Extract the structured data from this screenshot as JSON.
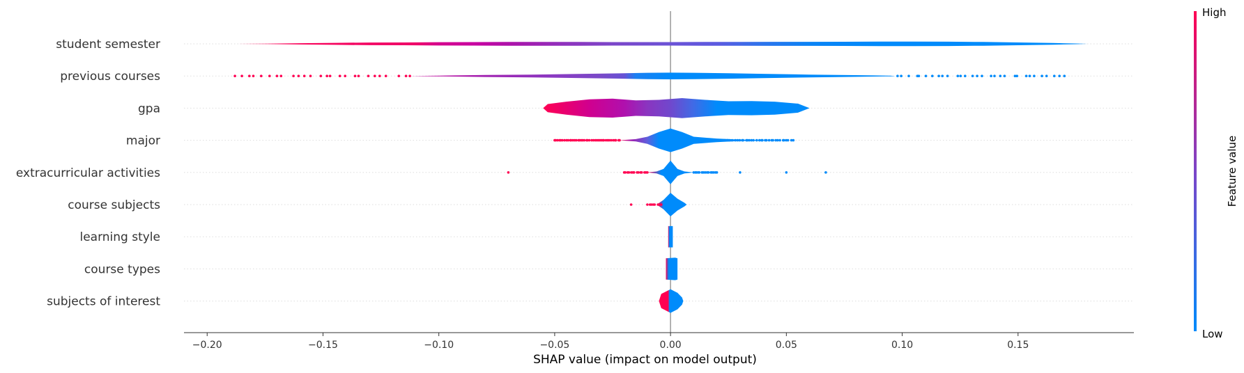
{
  "chart_data": {
    "type": "violin",
    "xlabel": "SHAP value (impact on model output)",
    "xlim": [
      -0.21,
      0.2
    ],
    "xticks": [
      -0.2,
      -0.15,
      -0.1,
      -0.05,
      0.0,
      0.05,
      0.1,
      0.15
    ],
    "xtick_labels": [
      "−0.20",
      "−0.15",
      "−0.10",
      "−0.05",
      "0.00",
      "0.05",
      "0.10",
      "0.15"
    ],
    "colorbar": {
      "label": "Feature value",
      "high_label": "High",
      "low_label": "Low",
      "high_color": "#ff0052",
      "low_color": "#008bfb"
    },
    "features": [
      {
        "name": "student semester",
        "violin": [
          [
            -0.187,
            0.0
          ],
          [
            -0.175,
            0.02
          ],
          [
            -0.16,
            0.05
          ],
          [
            -0.145,
            0.08
          ],
          [
            -0.13,
            0.11
          ],
          [
            -0.115,
            0.12
          ],
          [
            -0.1,
            0.14
          ],
          [
            -0.085,
            0.15
          ],
          [
            -0.07,
            0.16
          ],
          [
            -0.055,
            0.16
          ],
          [
            -0.04,
            0.16
          ],
          [
            -0.025,
            0.15
          ],
          [
            -0.01,
            0.15
          ],
          [
            0.0,
            0.15
          ],
          [
            0.015,
            0.16
          ],
          [
            0.03,
            0.165
          ],
          [
            0.045,
            0.17
          ],
          [
            0.06,
            0.17
          ],
          [
            0.075,
            0.175
          ],
          [
            0.09,
            0.19
          ],
          [
            0.105,
            0.19
          ],
          [
            0.12,
            0.18
          ],
          [
            0.135,
            0.16
          ],
          [
            0.15,
            0.12
          ],
          [
            0.165,
            0.07
          ],
          [
            0.175,
            0.03
          ],
          [
            0.18,
            0.0
          ]
        ],
        "colors": [
          [
            -0.187,
            "#ff0052"
          ],
          [
            -0.11,
            "#ef0869"
          ],
          [
            -0.1,
            "#d4008d"
          ],
          [
            -0.085,
            "#c800a0"
          ],
          [
            -0.065,
            "#a618ad"
          ],
          [
            -0.045,
            "#8e33be"
          ],
          [
            -0.025,
            "#7b46c9"
          ],
          [
            0.0,
            "#6b52d6"
          ],
          [
            0.02,
            "#5c5ae0"
          ],
          [
            0.04,
            "#2c74ec"
          ],
          [
            0.06,
            "#0a83f5"
          ],
          [
            0.09,
            "#008bfb"
          ],
          [
            0.18,
            "#008bfb"
          ]
        ],
        "dots": []
      },
      {
        "name": "previous courses",
        "violin": [
          [
            -0.113,
            0.0
          ],
          [
            -0.1,
            0.03
          ],
          [
            -0.08,
            0.08
          ],
          [
            -0.06,
            0.12
          ],
          [
            -0.04,
            0.17
          ],
          [
            -0.02,
            0.23
          ],
          [
            -0.01,
            0.27
          ],
          [
            0.0,
            0.28
          ],
          [
            0.01,
            0.27
          ],
          [
            0.025,
            0.23
          ],
          [
            0.04,
            0.18
          ],
          [
            0.06,
            0.12
          ],
          [
            0.08,
            0.07
          ],
          [
            0.095,
            0.03
          ],
          [
            0.097,
            0.0
          ]
        ],
        "colors": [
          [
            -0.113,
            "#ff0052"
          ],
          [
            -0.112,
            "#c80098"
          ],
          [
            -0.08,
            "#a020b0"
          ],
          [
            -0.05,
            "#8a3ac2"
          ],
          [
            -0.03,
            "#7a4ac8"
          ],
          [
            -0.02,
            "#6752d5"
          ],
          [
            -0.015,
            "#1a7ff2"
          ],
          [
            0.0,
            "#008bfb"
          ],
          [
            0.097,
            "#008bfb"
          ]
        ],
        "dots": [
          [
            -0.188,
            -0.1125,
            "#ff0052",
            26
          ],
          [
            0.098,
            0.17,
            "#008bfb",
            30
          ]
        ]
      },
      {
        "name": "gpa",
        "violin": [
          [
            -0.055,
            0.0
          ],
          [
            -0.053,
            0.35
          ],
          [
            -0.045,
            0.55
          ],
          [
            -0.035,
            0.75
          ],
          [
            -0.025,
            0.8
          ],
          [
            -0.015,
            0.65
          ],
          [
            -0.005,
            0.7
          ],
          [
            0.005,
            0.85
          ],
          [
            0.015,
            0.7
          ],
          [
            0.025,
            0.58
          ],
          [
            0.035,
            0.6
          ],
          [
            0.045,
            0.55
          ],
          [
            0.055,
            0.38
          ],
          [
            0.06,
            0.0
          ]
        ],
        "colors": [
          [
            -0.055,
            "#ff0052"
          ],
          [
            -0.035,
            "#d0008f"
          ],
          [
            -0.02,
            "#b010ad"
          ],
          [
            -0.01,
            "#8a35c0"
          ],
          [
            0.0,
            "#7048cd"
          ],
          [
            0.01,
            "#3f6be6"
          ],
          [
            0.02,
            "#008bfb"
          ],
          [
            0.06,
            "#008bfb"
          ]
        ],
        "dots": []
      },
      {
        "name": "major",
        "violin": [
          [
            -0.022,
            0.0
          ],
          [
            -0.015,
            0.1
          ],
          [
            -0.01,
            0.3
          ],
          [
            -0.005,
            0.7
          ],
          [
            0.0,
            1.0
          ],
          [
            0.005,
            0.7
          ],
          [
            0.01,
            0.3
          ],
          [
            0.02,
            0.15
          ],
          [
            0.03,
            0.06
          ],
          [
            0.04,
            0.02
          ],
          [
            0.045,
            0.0
          ]
        ],
        "colors": [
          [
            -0.022,
            "#ff0052"
          ],
          [
            -0.017,
            "#a020b0"
          ],
          [
            -0.01,
            "#5e5fdc"
          ],
          [
            -0.005,
            "#008bfb"
          ],
          [
            0.045,
            "#008bfb"
          ]
        ],
        "dots": [
          [
            -0.05,
            -0.022,
            "#ff0052",
            40
          ],
          [
            0.012,
            0.053,
            "#008bfb",
            45
          ]
        ]
      },
      {
        "name": "extracurricular activities",
        "violin": [
          [
            -0.01,
            0.0
          ],
          [
            -0.006,
            0.08
          ],
          [
            -0.003,
            0.3
          ],
          [
            0.0,
            1.0
          ],
          [
            0.003,
            0.3
          ],
          [
            0.006,
            0.08
          ],
          [
            0.01,
            0.0
          ]
        ],
        "colors": [
          [
            -0.01,
            "#ff0052"
          ],
          [
            -0.004,
            "#008bfb"
          ],
          [
            0.01,
            "#008bfb"
          ]
        ],
        "dots": [
          [
            -0.07,
            -0.07,
            "#ff0052",
            1
          ],
          [
            -0.02,
            -0.01,
            "#ff0052",
            14
          ],
          [
            0.01,
            0.02,
            "#008bfb",
            16
          ],
          [
            0.03,
            0.03,
            "#008bfb",
            1
          ],
          [
            0.05,
            0.05,
            "#008bfb",
            1
          ],
          [
            0.067,
            0.067,
            "#008bfb",
            1
          ]
        ]
      },
      {
        "name": "course subjects",
        "violin": [
          [
            -0.006,
            0.0
          ],
          [
            -0.003,
            0.4
          ],
          [
            0.0,
            1.0
          ],
          [
            0.003,
            0.5
          ],
          [
            0.006,
            0.15
          ],
          [
            0.007,
            0.0
          ]
        ],
        "colors": [
          [
            -0.006,
            "#ff0052"
          ],
          [
            -0.003,
            "#008bfb"
          ],
          [
            0.007,
            "#008bfb"
          ]
        ],
        "dots": [
          [
            -0.017,
            -0.017,
            "#ff0052",
            1
          ],
          [
            -0.01,
            -0.004,
            "#ff0052",
            8
          ]
        ]
      },
      {
        "name": "learning style",
        "violin": [
          [
            -0.001,
            0.0
          ],
          [
            -0.001,
            0.9
          ],
          [
            0.001,
            0.9
          ],
          [
            0.001,
            0.0
          ]
        ],
        "colors": [
          [
            -0.001,
            "#ff0052"
          ],
          [
            -0.0005,
            "#008bfb"
          ],
          [
            0.001,
            "#008bfb"
          ]
        ],
        "dots": []
      },
      {
        "name": "course types",
        "violin": [
          [
            -0.002,
            0.0
          ],
          [
            -0.002,
            0.9
          ],
          [
            0.002,
            0.95
          ],
          [
            0.003,
            0.9
          ],
          [
            0.003,
            0.0
          ]
        ],
        "colors": [
          [
            -0.002,
            "#ff0052"
          ],
          [
            -0.0008,
            "#008bfb"
          ],
          [
            0.003,
            "#008bfb"
          ]
        ],
        "dots": []
      },
      {
        "name": "subjects of interest",
        "violin": [
          [
            -0.005,
            0.0
          ],
          [
            -0.004,
            0.6
          ],
          [
            0.0,
            1.0
          ],
          [
            0.003,
            0.7
          ],
          [
            0.005,
            0.3
          ],
          [
            0.0055,
            0.0
          ]
        ],
        "colors": [
          [
            -0.005,
            "#ff0052"
          ],
          [
            -0.001,
            "#ff0052"
          ],
          [
            -0.0005,
            "#008bfb"
          ],
          [
            0.0055,
            "#008bfb"
          ]
        ],
        "dots": []
      }
    ]
  }
}
